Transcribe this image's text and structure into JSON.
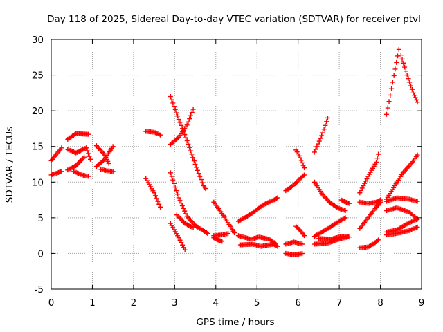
{
  "chart_data": {
    "type": "scatter",
    "title": "Day 118 of 2025, Sidereal Day-to-day VTEC variation (SDTVAR) for receiver ptvl",
    "xlabel": "GPS time / hours",
    "ylabel": "SDTVAR / TECUs",
    "xlim": [
      0,
      9
    ],
    "ylim": [
      -5,
      30
    ],
    "xticks": [
      0,
      1,
      2,
      3,
      4,
      5,
      6,
      7,
      8,
      9
    ],
    "yticks": [
      -5,
      0,
      5,
      10,
      15,
      20,
      25,
      30
    ],
    "grid": true,
    "marker": "plus",
    "color": "#ff0000",
    "segments": [
      [
        [
          0.0,
          13.0
        ],
        [
          0.25,
          14.8
        ]
      ],
      [
        [
          0.0,
          11.0
        ],
        [
          0.15,
          11.3
        ],
        [
          0.25,
          11.5
        ]
      ],
      [
        [
          0.4,
          16.0
        ],
        [
          0.6,
          16.8
        ],
        [
          0.9,
          16.7
        ]
      ],
      [
        [
          0.4,
          14.6
        ],
        [
          0.6,
          14.1
        ],
        [
          0.85,
          14.8
        ],
        [
          0.95,
          13.2
        ]
      ],
      [
        [
          0.4,
          11.7
        ],
        [
          0.6,
          12.3
        ],
        [
          0.8,
          13.5
        ]
      ],
      [
        [
          0.55,
          11.5
        ],
        [
          0.75,
          11.0
        ],
        [
          0.9,
          10.8
        ]
      ],
      [
        [
          1.1,
          15.1
        ],
        [
          1.3,
          13.8
        ],
        [
          1.4,
          12.6
        ]
      ],
      [
        [
          1.1,
          12.2
        ],
        [
          1.3,
          13.2
        ],
        [
          1.5,
          15.0
        ]
      ],
      [
        [
          1.2,
          11.8
        ],
        [
          1.35,
          11.6
        ],
        [
          1.5,
          11.5
        ]
      ],
      [
        [
          2.3,
          17.1
        ],
        [
          2.5,
          17.0
        ],
        [
          2.65,
          16.6
        ]
      ],
      [
        [
          2.3,
          10.5
        ],
        [
          2.5,
          8.5
        ],
        [
          2.65,
          6.5
        ]
      ],
      [
        [
          2.9,
          22.0
        ],
        [
          3.1,
          18.8
        ],
        [
          3.3,
          15.8
        ],
        [
          3.5,
          12.5
        ],
        [
          3.7,
          9.5
        ],
        [
          3.75,
          9.1
        ]
      ],
      [
        [
          2.9,
          15.3
        ],
        [
          3.1,
          16.3
        ],
        [
          3.3,
          18.0
        ],
        [
          3.45,
          20.2
        ]
      ],
      [
        [
          2.9,
          11.3
        ],
        [
          3.1,
          7.8
        ],
        [
          3.3,
          5.2
        ],
        [
          3.5,
          3.9
        ],
        [
          3.7,
          3.2
        ],
        [
          3.8,
          2.8
        ]
      ],
      [
        [
          2.9,
          4.2
        ],
        [
          3.1,
          2.2
        ],
        [
          3.25,
          0.5
        ]
      ],
      [
        [
          3.05,
          5.4
        ],
        [
          3.25,
          4.2
        ],
        [
          3.45,
          3.6
        ]
      ],
      [
        [
          3.95,
          7.2
        ],
        [
          4.15,
          5.6
        ],
        [
          4.35,
          3.8
        ],
        [
          4.45,
          2.9
        ]
      ],
      [
        [
          3.95,
          2.5
        ],
        [
          4.15,
          2.6
        ],
        [
          4.3,
          2.8
        ]
      ],
      [
        [
          3.95,
          2.2
        ],
        [
          4.05,
          1.9
        ],
        [
          4.15,
          1.7
        ]
      ],
      [
        [
          4.55,
          4.5
        ],
        [
          4.85,
          5.5
        ],
        [
          5.15,
          6.8
        ],
        [
          5.45,
          7.6
        ],
        [
          5.5,
          7.8
        ]
      ],
      [
        [
          4.55,
          2.5
        ],
        [
          4.85,
          2.0
        ],
        [
          5.05,
          2.3
        ],
        [
          5.3,
          2.0
        ],
        [
          5.45,
          1.4
        ]
      ],
      [
        [
          4.6,
          1.2
        ],
        [
          4.9,
          1.3
        ],
        [
          5.1,
          1.0
        ],
        [
          5.4,
          1.3
        ],
        [
          5.5,
          1.0
        ]
      ],
      [
        [
          5.7,
          8.8
        ],
        [
          5.9,
          9.6
        ],
        [
          6.05,
          10.5
        ],
        [
          6.15,
          11.0
        ]
      ],
      [
        [
          5.7,
          1.3
        ],
        [
          5.9,
          1.6
        ],
        [
          6.1,
          1.3
        ]
      ],
      [
        [
          5.7,
          0.0
        ],
        [
          5.9,
          -0.2
        ],
        [
          6.1,
          0.0
        ]
      ],
      [
        [
          5.95,
          14.5
        ],
        [
          6.05,
          13.4
        ],
        [
          6.15,
          12.0
        ]
      ],
      [
        [
          5.95,
          3.8
        ],
        [
          6.05,
          3.2
        ],
        [
          6.15,
          2.5
        ]
      ],
      [
        [
          6.4,
          14.2
        ],
        [
          6.6,
          16.9
        ],
        [
          6.72,
          19.0
        ]
      ],
      [
        [
          6.4,
          10.0
        ],
        [
          6.6,
          8.2
        ],
        [
          6.8,
          7.0
        ],
        [
          7.0,
          6.3
        ],
        [
          7.15,
          6.0
        ]
      ],
      [
        [
          6.4,
          2.4
        ],
        [
          6.7,
          3.4
        ],
        [
          7.0,
          4.5
        ],
        [
          7.15,
          5.0
        ]
      ],
      [
        [
          6.4,
          1.3
        ],
        [
          6.7,
          1.4
        ],
        [
          7.0,
          2.0
        ],
        [
          7.2,
          2.3
        ]
      ],
      [
        [
          6.5,
          2.1
        ],
        [
          6.8,
          2.0
        ],
        [
          7.05,
          2.4
        ],
        [
          7.25,
          2.3
        ]
      ],
      [
        [
          7.05,
          7.5
        ],
        [
          7.15,
          7.2
        ],
        [
          7.25,
          7.0
        ]
      ],
      [
        [
          7.5,
          8.5
        ],
        [
          7.7,
          10.8
        ],
        [
          7.9,
          12.8
        ],
        [
          7.95,
          13.9
        ]
      ],
      [
        [
          7.5,
          7.2
        ],
        [
          7.7,
          7.0
        ],
        [
          7.9,
          7.2
        ],
        [
          8.0,
          7.5
        ]
      ],
      [
        [
          7.5,
          3.5
        ],
        [
          7.7,
          5.0
        ],
        [
          7.9,
          6.5
        ],
        [
          8.0,
          7.2
        ]
      ],
      [
        [
          7.5,
          0.8
        ],
        [
          7.7,
          0.9
        ],
        [
          7.85,
          1.4
        ],
        [
          7.95,
          1.9
        ]
      ],
      [
        [
          8.15,
          19.5
        ],
        [
          8.3,
          24.0
        ],
        [
          8.45,
          28.6
        ]
      ],
      [
        [
          8.5,
          27.8
        ],
        [
          8.65,
          25.0
        ],
        [
          8.8,
          22.5
        ],
        [
          8.9,
          21.2
        ]
      ],
      [
        [
          8.15,
          7.6
        ],
        [
          8.35,
          9.5
        ],
        [
          8.55,
          11.3
        ],
        [
          8.75,
          12.6
        ],
        [
          8.9,
          13.8
        ]
      ],
      [
        [
          8.15,
          7.3
        ],
        [
          8.4,
          7.8
        ],
        [
          8.7,
          7.6
        ],
        [
          8.9,
          7.3
        ]
      ],
      [
        [
          8.15,
          6.0
        ],
        [
          8.4,
          6.4
        ],
        [
          8.7,
          5.8
        ],
        [
          8.9,
          4.8
        ]
      ],
      [
        [
          8.15,
          3.0
        ],
        [
          8.4,
          3.3
        ],
        [
          8.7,
          4.3
        ],
        [
          8.9,
          4.8
        ]
      ],
      [
        [
          8.15,
          2.6
        ],
        [
          8.4,
          2.8
        ],
        [
          8.7,
          3.2
        ],
        [
          8.9,
          3.7
        ]
      ]
    ]
  }
}
